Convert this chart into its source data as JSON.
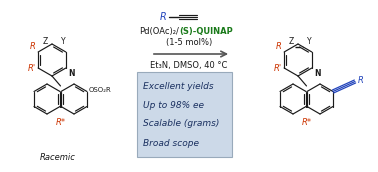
{
  "bg_color": "#ffffff",
  "mol_color": "#1a1a1a",
  "red_color": "#cc3300",
  "blue_color": "#2244bb",
  "green_color": "#1a7a1a",
  "box_bg": "#ccd9e8",
  "box_edge": "#99aabb",
  "box_text_color": "#1a3060",
  "arrow_color": "#555555",
  "box_lines": [
    "Excellent yields",
    "Up to 98% ee",
    "Scalable (grams)",
    "Broad scope"
  ],
  "reagent_black": "Pd(OAc)₂/",
  "reagent_green": "(S)-QUINAP",
  "reagent_mol": "(1-5 mol%)",
  "reagent_cond": "Et₃N, DMSO, 40 °C",
  "racemic_label": "Racemic"
}
